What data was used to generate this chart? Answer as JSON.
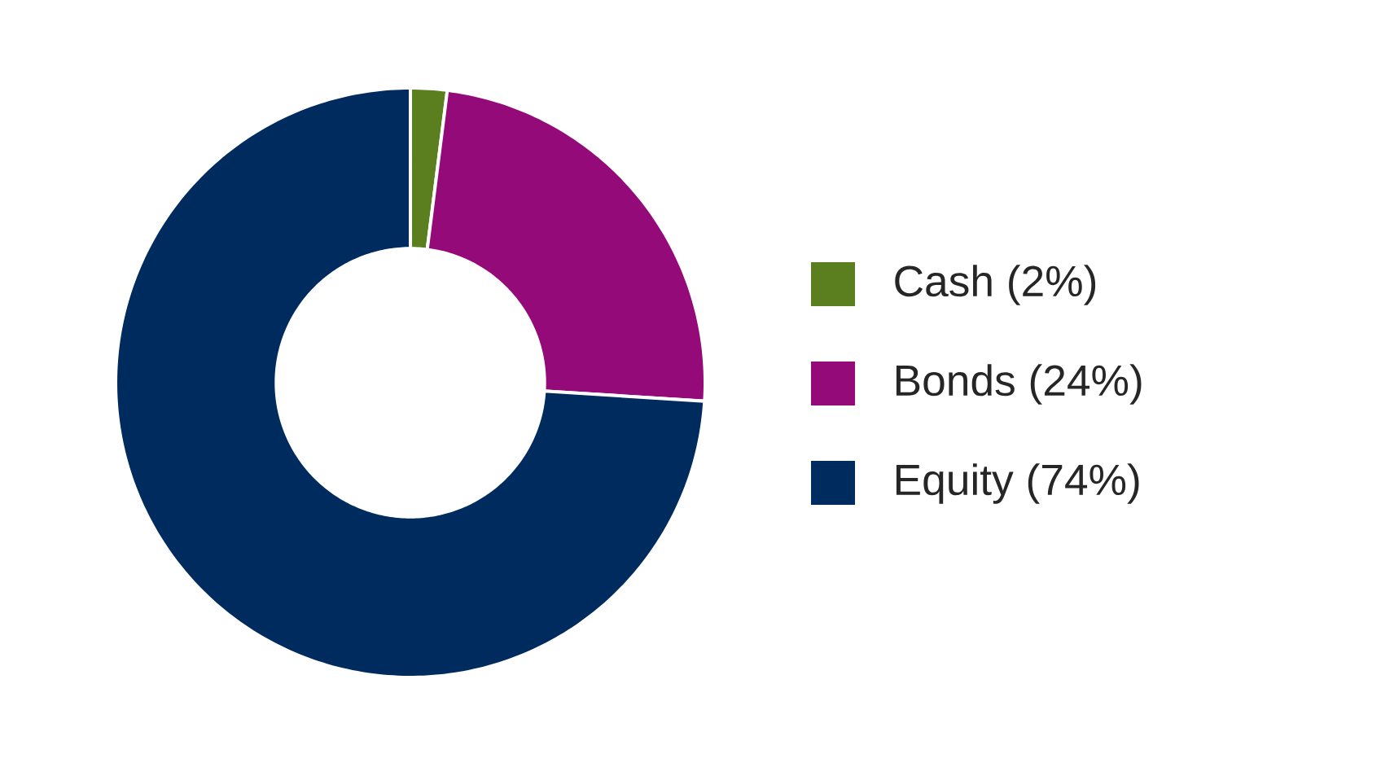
{
  "chart_data": {
    "type": "donut",
    "categories": [
      "Cash (2%)",
      "Bonds (24%)",
      "Equity (74%)"
    ],
    "values": [
      2,
      24,
      74
    ],
    "colors": [
      "#5b7f1f",
      "#940a79",
      "#002b5f"
    ],
    "legend": "right"
  }
}
